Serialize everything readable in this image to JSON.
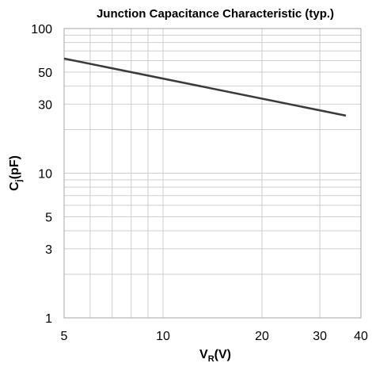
{
  "chart_data": {
    "type": "line",
    "title": "Junction Capacitance Characteristic (typ.)",
    "xlabel": {
      "main": "V",
      "sub": "R",
      "suffix": "(V)"
    },
    "ylabel": {
      "main": "C",
      "sub": "j",
      "suffix": "(pF)"
    },
    "x_scale": "log",
    "y_scale": "log",
    "xlim": [
      5,
      40
    ],
    "ylim": [
      1,
      100
    ],
    "x_ticks": [
      {
        "value": 5,
        "label": "5"
      },
      {
        "value": 10,
        "label": "10"
      },
      {
        "value": 20,
        "label": "20"
      },
      {
        "value": 30,
        "label": "30"
      },
      {
        "value": 40,
        "label": "40"
      }
    ],
    "y_ticks": [
      {
        "value": 1,
        "label": "1"
      },
      {
        "value": 3,
        "label": "3"
      },
      {
        "value": 5,
        "label": "5"
      },
      {
        "value": 10,
        "label": "10"
      },
      {
        "value": 30,
        "label": "30"
      },
      {
        "value": 50,
        "label": "50"
      },
      {
        "value": 100,
        "label": "100"
      }
    ],
    "x_gridlines": [
      5,
      6,
      7,
      8,
      9,
      10,
      20,
      30,
      40
    ],
    "y_gridlines": [
      1,
      2,
      3,
      4,
      5,
      6,
      7,
      8,
      9,
      10,
      20,
      30,
      40,
      50,
      60,
      70,
      80,
      90,
      100
    ],
    "grid": true,
    "series": [
      {
        "x": [
          5,
          36
        ],
        "y": [
          62,
          25
        ]
      }
    ],
    "colors": {
      "line": "#3a3a3a",
      "grid": "#cfcfcf",
      "frame": "#a6a6a6"
    }
  }
}
